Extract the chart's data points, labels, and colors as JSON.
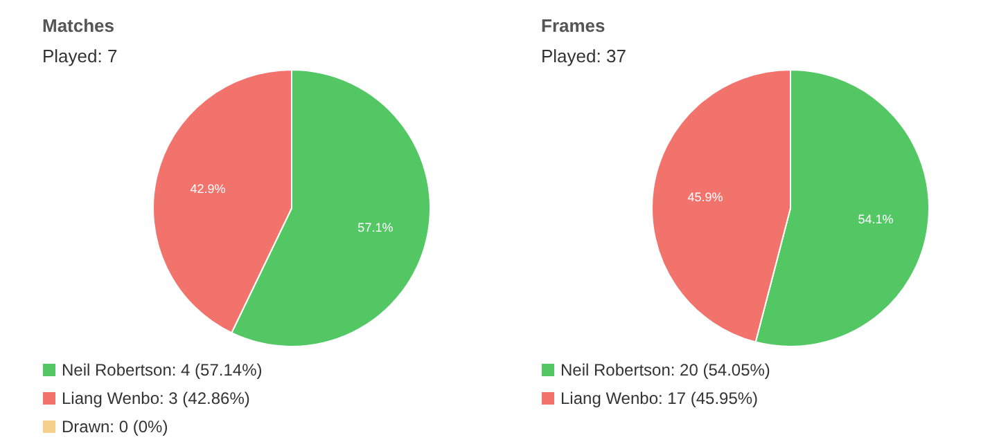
{
  "chart_data": [
    {
      "type": "pie",
      "title": "Matches",
      "subtitle": "Played: 7",
      "categories": [
        "Neil Robertson: 4 (57.14%)",
        "Liang Wenbo: 3 (42.86%)",
        "Drawn: 0 (0%)"
      ],
      "values": [
        57.14,
        42.86,
        0
      ],
      "colors": [
        "#52c763",
        "#f2726c",
        "#f5d08c"
      ],
      "value_labels": [
        "57.1%",
        "42.9%",
        null
      ],
      "legend": "bottom left"
    },
    {
      "type": "pie",
      "title": "Frames",
      "subtitle": "Played: 37",
      "categories": [
        "Neil Robertson: 20 (54.05%)",
        "Liang Wenbo: 17 (45.95%)"
      ],
      "values": [
        54.05,
        45.95
      ],
      "colors": [
        "#52c763",
        "#f2726c"
      ],
      "value_labels": [
        "54.1%",
        "45.9%"
      ],
      "legend": "bottom left"
    }
  ]
}
